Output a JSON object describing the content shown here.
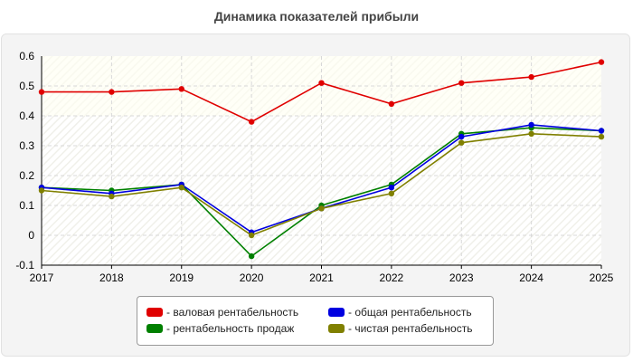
{
  "chart_data": {
    "type": "line",
    "title": "Динамика показателей прибыли",
    "xlabel": "",
    "ylabel": "",
    "x": [
      "2017",
      "2018",
      "2019",
      "2020",
      "2021",
      "2022",
      "2023",
      "2024",
      "2025"
    ],
    "ylim": [
      -0.1,
      0.6
    ],
    "yticks": [
      "-0.1",
      "0",
      "0.1",
      "0.2",
      "0.3",
      "0.4",
      "0.5",
      "0.6"
    ],
    "grid": true,
    "legend_position": "bottom-center",
    "series": [
      {
        "name": "- валовая рентабельность",
        "color": "#e00000",
        "values": [
          0.48,
          0.48,
          0.49,
          0.38,
          0.51,
          0.44,
          0.51,
          0.53,
          0.58
        ]
      },
      {
        "name": "- общая рентабельность",
        "color": "#0000e0",
        "values": [
          0.16,
          0.14,
          0.17,
          0.01,
          0.09,
          0.16,
          0.33,
          0.37,
          0.35
        ]
      },
      {
        "name": "- рентабельность продаж",
        "color": "#008000",
        "values": [
          0.16,
          0.15,
          0.17,
          -0.07,
          0.1,
          0.17,
          0.34,
          0.36,
          0.35
        ]
      },
      {
        "name": "- чистая рентабельность",
        "color": "#808000",
        "values": [
          0.15,
          0.13,
          0.16,
          0.0,
          0.09,
          0.14,
          0.31,
          0.34,
          0.33
        ]
      }
    ]
  }
}
